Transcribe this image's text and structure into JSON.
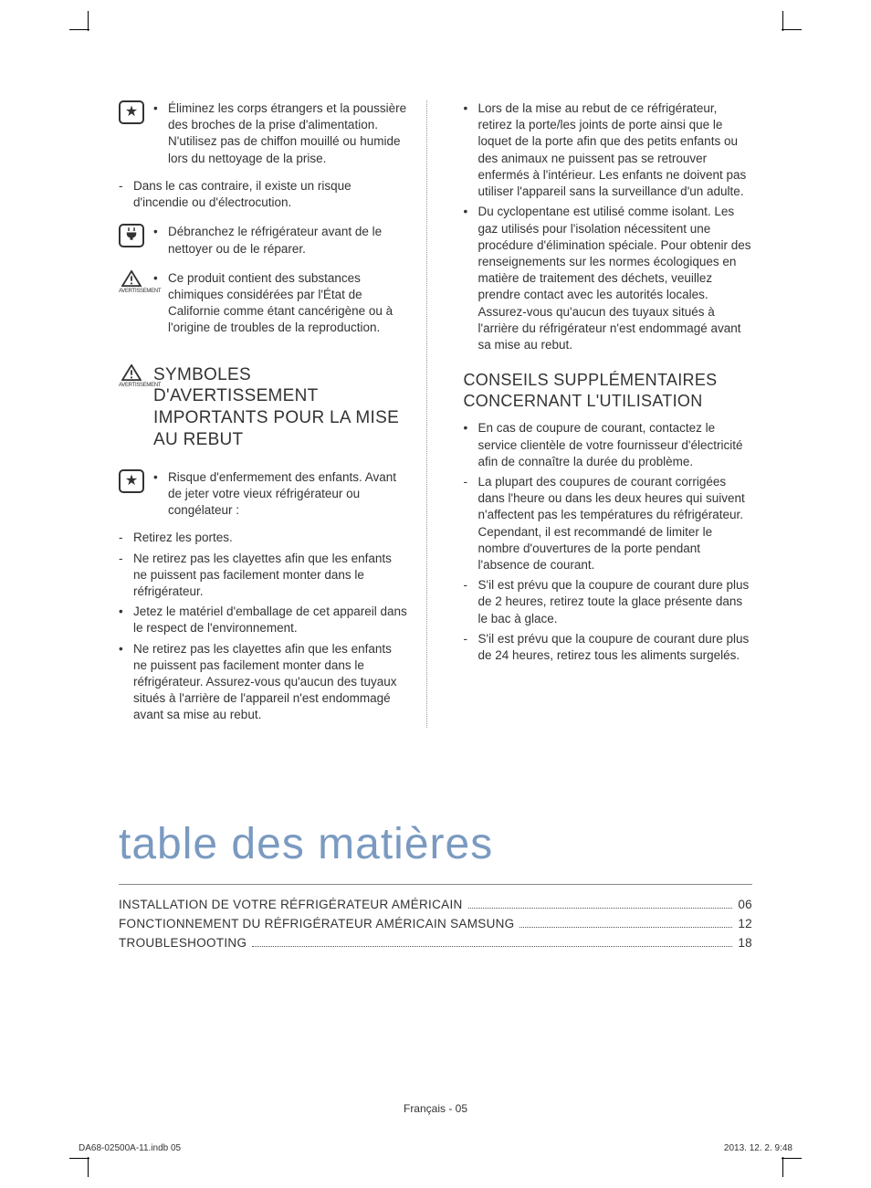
{
  "icons": {
    "star": "★",
    "plug": "⚡",
    "warn_label": "AVERTISSEMENT"
  },
  "left": {
    "block1_bullet": "Éliminez les corps étrangers et la poussière des broches de la prise d'alimentation. N'utilisez pas de chiffon mouillé ou humide lors du nettoyage de la prise.",
    "block1_dash": "Dans le cas contraire, il existe un risque d'incendie ou d'électrocution.",
    "block2_bullet": "Débranchez le réfrigérateur avant de le nettoyer ou de le réparer.",
    "block3_bullet": "Ce produit contient des substances chimiques considérées par l'État de Californie comme étant cancérigène ou à l'origine de troubles de la reproduction.",
    "section_title": "SYMBOLES D'AVERTISSEMENT IMPORTANTS POUR LA MISE AU REBUT",
    "sec_b1": "Risque d'enfermement des enfants. Avant de jeter votre vieux réfrigérateur ou congélateur :",
    "sec_d1": "Retirez les portes.",
    "sec_d2": "Ne retirez pas les clayettes afin que les enfants ne puissent pas facilement monter dans le réfrigérateur.",
    "sec_b2": "Jetez le matériel d'emballage de cet appareil dans le respect de l'environnement.",
    "sec_b3": "Ne retirez pas les clayettes afin que les enfants ne puissent pas facilement monter dans le réfrigérateur. Assurez-vous qu'aucun des tuyaux situés à l'arrière de l'appareil n'est endommagé avant sa mise au rebut."
  },
  "right": {
    "r_b1": "Lors de la mise au rebut de ce réfrigérateur, retirez la porte/les joints de porte ainsi que le loquet de la porte afin que des petits enfants ou des animaux ne puissent pas se retrouver enfermés à l'intérieur. Les enfants ne doivent pas utiliser l'appareil sans la surveillance d'un adulte.",
    "r_b2": "Du cyclopentane est utilisé comme isolant. Les gaz utilisés pour l'isolation nécessitent une procédure d'élimination spéciale. Pour obtenir des renseignements sur les normes écologiques en matière de traitement des déchets, veuillez prendre contact avec les autorités locales. Assurez-vous qu'aucun des tuyaux situés à l'arrière du réfrigérateur n'est endommagé avant sa mise au rebut.",
    "section_title": "CONSEILS SUPPLÉMENTAIRES CONCERNANT L'UTILISATION",
    "c_b1": "En cas de coupure de courant, contactez le service clientèle de votre fournisseur d'électricité afin de connaître la durée du problème.",
    "c_d1": "La plupart des coupures de courant corrigées dans l'heure ou dans les deux heures qui suivent n'affectent pas les températures du réfrigérateur. Cependant, il est recommandé de limiter le nombre d'ouvertures de la porte pendant l'absence de courant.",
    "c_d2": "S'il est prévu que la coupure de courant dure plus de 2 heures, retirez toute la glace présente dans le bac à glace.",
    "c_d3": "S'il est prévu que la coupure de courant dure plus de 24 heures, retirez tous les aliments surgelés."
  },
  "toc": {
    "title": "table des matières",
    "rows": [
      {
        "label": "INSTALLATION DE VOTRE RÉFRIGÉRATEUR AMÉRICAIN",
        "page": "06"
      },
      {
        "label": "FONCTIONNEMENT DU RÉFRIGÉRATEUR AMÉRICAIN SAMSUNG",
        "page": "12"
      },
      {
        "label": "TROUBLESHOOTING",
        "page": "18"
      }
    ]
  },
  "footer": {
    "center": "Français - 05",
    "left": "DA68-02500A-11.indb   05",
    "right": "2013. 12. 2.     9:48"
  },
  "style": {
    "accent_color": "#7a9ac0",
    "text_color": "#333333",
    "body_fontsize": 13.5,
    "heading_fontsize": 19,
    "toc_title_fontsize": 48
  }
}
